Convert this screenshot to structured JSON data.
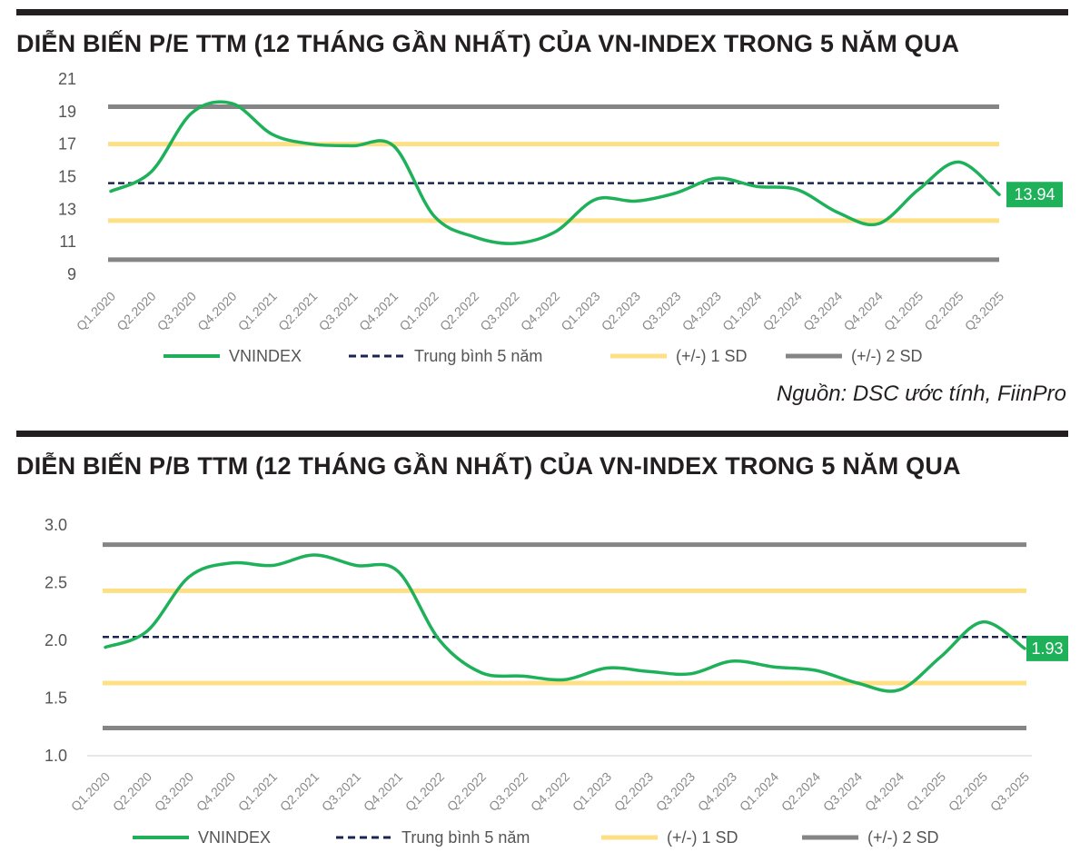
{
  "colors": {
    "vnindex": "#1fb15a",
    "mean": "#1b2550",
    "sd1": "#fddf84",
    "sd2": "#858585",
    "label_bg": "#1fb15a",
    "axis_text": "#555555"
  },
  "source_note": "Nguồn: DSC ước tính, FiinPro",
  "chart_data": [
    {
      "type": "line",
      "title": "DIỄN BIẾN P/E TTM (12 THÁNG GẦN NHẤT) CỦA VN-INDEX TRONG 5 NĂM QUA",
      "y_ticks": [
        "21",
        "19",
        "17",
        "15",
        "13",
        "11",
        "9"
      ],
      "ylim": [
        9,
        21
      ],
      "x_ticks": [
        "Q1.2020",
        "Q2.2020",
        "Q3.2020",
        "Q4.2020",
        "Q1.2021",
        "Q2.2021",
        "Q3.2021",
        "Q4.2021",
        "Q1.2022",
        "Q2.2022",
        "Q3.2022",
        "Q4.2022",
        "Q1.2023",
        "Q2.2023",
        "Q3.2023",
        "Q4.2023",
        "Q1.2024",
        "Q2.2024",
        "Q3.2024",
        "Q4.2024",
        "Q1.2025",
        "Q2.2025",
        "Q3.2025"
      ],
      "series": [
        {
          "name": "VNINDEX",
          "style": "line",
          "values": [
            14.1,
            15.3,
            18.9,
            19.5,
            17.6,
            17.0,
            16.9,
            16.9,
            12.6,
            11.3,
            10.9,
            11.6,
            13.6,
            13.5,
            14.0,
            14.9,
            14.4,
            14.2,
            12.8,
            12.1,
            14.2,
            15.9,
            13.9
          ]
        },
        {
          "name": "Trung bình 5 năm",
          "style": "dashed",
          "values": [
            14.6
          ]
        },
        {
          "name": "(+/-) 1 SD",
          "style": "band",
          "values": [
            12.3,
            17.0
          ]
        },
        {
          "name": "(+/-) 2 SD",
          "style": "band",
          "values": [
            9.9,
            19.3
          ]
        }
      ],
      "end_label": "13.94",
      "legend": [
        "VNINDEX",
        "Trung bình 5 năm",
        "(+/-) 1 SD",
        "(+/-) 2 SD"
      ],
      "legend_position": "bottom"
    },
    {
      "type": "line",
      "title": "DIỄN BIẾN P/B TTM (12 THÁNG GẦN NHẤT) CỦA VN-INDEX TRONG 5 NĂM QUA",
      "y_ticks": [
        "3.0",
        "2.5",
        "2.0",
        "1.5",
        "1.0"
      ],
      "ylim": [
        1.0,
        3.0
      ],
      "x_ticks": [
        "Q1.2020",
        "Q2.2020",
        "Q3.2020",
        "Q4.2020",
        "Q1.2021",
        "Q2.2021",
        "Q3.2021",
        "Q4.2021",
        "Q1.2022",
        "Q2.2022",
        "Q3.2022",
        "Q4.2022",
        "Q1.2023",
        "Q2.2023",
        "Q3.2023",
        "Q4.2023",
        "Q1.2024",
        "Q2.2024",
        "Q3.2024",
        "Q4.2024",
        "Q1.2025",
        "Q2.2025",
        "Q3.2025"
      ],
      "series": [
        {
          "name": "VNINDEX",
          "style": "line",
          "values": [
            1.94,
            2.08,
            2.55,
            2.67,
            2.65,
            2.74,
            2.65,
            2.6,
            2.0,
            1.72,
            1.69,
            1.66,
            1.76,
            1.73,
            1.71,
            1.82,
            1.77,
            1.74,
            1.63,
            1.57,
            1.86,
            2.16,
            1.93
          ]
        },
        {
          "name": "Trung bình 5 năm",
          "style": "dashed",
          "values": [
            2.03
          ]
        },
        {
          "name": "(+/-) 1 SD",
          "style": "band",
          "values": [
            1.63,
            2.43
          ]
        },
        {
          "name": "(+/-) 2 SD",
          "style": "band",
          "values": [
            1.24,
            2.83
          ]
        }
      ],
      "end_label": "1.93",
      "legend": [
        "VNINDEX",
        "Trung bình 5 năm",
        "(+/-) 1 SD",
        "(+/-) 2 SD"
      ],
      "legend_position": "bottom"
    }
  ]
}
